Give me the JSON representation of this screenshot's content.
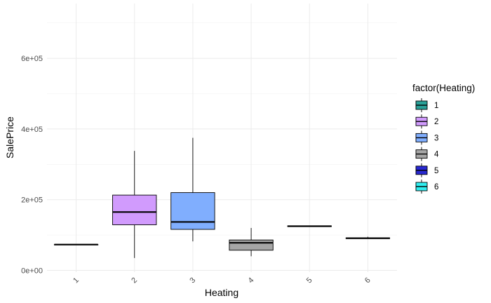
{
  "chart_data": {
    "type": "boxplot",
    "xlabel": "Heating",
    "ylabel": "SalePrice",
    "categories": [
      "1",
      "2",
      "3",
      "4",
      "5",
      "6"
    ],
    "ylim": [
      -5000,
      755000
    ],
    "yticks": [
      0,
      200000,
      400000,
      600000
    ],
    "ytick_labels": [
      "0e+00",
      "2e+05",
      "4e+05",
      "6e+05"
    ],
    "grid": true,
    "legend": {
      "title": "factor(Heating)",
      "position": "right",
      "entries": [
        "1",
        "2",
        "3",
        "4",
        "5",
        "6"
      ]
    },
    "boxes": [
      {
        "category": "1",
        "color": "#2AA198",
        "min": 73000,
        "q1": 73000,
        "median": 73000,
        "q3": 73000,
        "max": 73000
      },
      {
        "category": "2",
        "color": "#D19BFD",
        "min": 35000,
        "q1": 129000,
        "median": 165000,
        "q3": 213000,
        "max": 338000
      },
      {
        "category": "3",
        "color": "#80AEFE",
        "min": 82000,
        "q1": 116000,
        "median": 137000,
        "q3": 220000,
        "max": 375000
      },
      {
        "category": "4",
        "color": "#A6A6A6",
        "min": 40000,
        "q1": 57000,
        "median": 78000,
        "q3": 86000,
        "max": 120000
      },
      {
        "category": "5",
        "color": "#2828D2",
        "min": 124000,
        "q1": 124000,
        "median": 125000,
        "q3": 126000,
        "max": 126000
      },
      {
        "category": "6",
        "color": "#30EEF0",
        "min": 90000,
        "q1": 90000,
        "median": 91000,
        "q3": 92000,
        "max": 95000
      }
    ]
  }
}
